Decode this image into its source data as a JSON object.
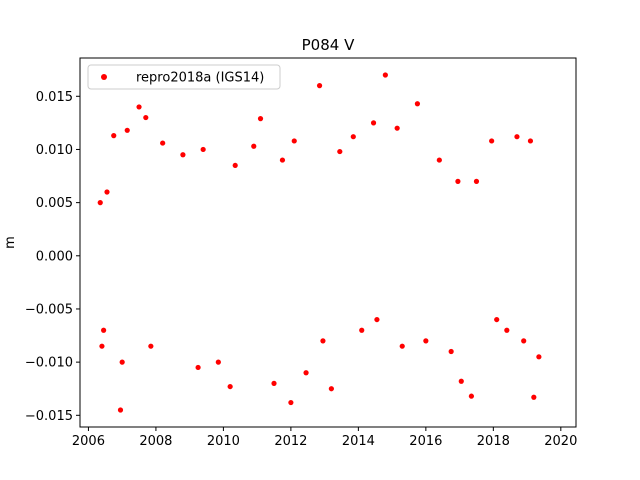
{
  "chart_data": {
    "type": "scatter",
    "title": "P084 V",
    "xlabel": "",
    "ylabel": "m",
    "xlim": [
      2005.75,
      2020.45
    ],
    "ylim": [
      -0.0161,
      0.0186
    ],
    "x_ticks": [
      2006,
      2008,
      2010,
      2012,
      2014,
      2016,
      2018,
      2020
    ],
    "x_tick_labels": [
      "2006",
      "2008",
      "2010",
      "2012",
      "2014",
      "2016",
      "2018",
      "2020"
    ],
    "y_ticks": [
      -0.015,
      -0.01,
      -0.005,
      0.0,
      0.005,
      0.01,
      0.015
    ],
    "y_tick_labels": [
      "−0.015",
      "−0.010",
      "−0.005",
      "0.000",
      "0.005",
      "0.010",
      "0.015"
    ],
    "legend_position": "upper-left",
    "grid": false,
    "series": [
      {
        "name": "repro2018a (IGS14)",
        "color": "#ff0000",
        "marker": "circle",
        "points": [
          [
            2006.35,
            0.005
          ],
          [
            2006.4,
            -0.0085
          ],
          [
            2006.45,
            -0.007
          ],
          [
            2006.55,
            0.006
          ],
          [
            2006.75,
            0.0113
          ],
          [
            2006.95,
            -0.0145
          ],
          [
            2007.0,
            -0.01
          ],
          [
            2007.15,
            0.0118
          ],
          [
            2007.5,
            0.014
          ],
          [
            2007.7,
            0.013
          ],
          [
            2007.85,
            -0.0085
          ],
          [
            2008.2,
            0.0106
          ],
          [
            2008.8,
            0.0095
          ],
          [
            2009.25,
            -0.0105
          ],
          [
            2009.4,
            0.01
          ],
          [
            2009.85,
            -0.01
          ],
          [
            2010.2,
            -0.0123
          ],
          [
            2010.35,
            0.0085
          ],
          [
            2010.9,
            0.0103
          ],
          [
            2011.1,
            0.0129
          ],
          [
            2011.5,
            -0.012
          ],
          [
            2011.75,
            0.009
          ],
          [
            2012.0,
            -0.0138
          ],
          [
            2012.1,
            0.0108
          ],
          [
            2012.45,
            -0.011
          ],
          [
            2012.85,
            0.016
          ],
          [
            2012.95,
            -0.008
          ],
          [
            2013.2,
            -0.0125
          ],
          [
            2013.45,
            0.0098
          ],
          [
            2013.85,
            0.0112
          ],
          [
            2014.1,
            -0.007
          ],
          [
            2014.45,
            0.0125
          ],
          [
            2014.55,
            -0.006
          ],
          [
            2014.8,
            0.017
          ],
          [
            2015.15,
            0.012
          ],
          [
            2015.3,
            -0.0085
          ],
          [
            2015.75,
            0.0143
          ],
          [
            2016.0,
            -0.008
          ],
          [
            2016.4,
            0.009
          ],
          [
            2016.75,
            -0.009
          ],
          [
            2016.95,
            0.007
          ],
          [
            2017.05,
            -0.0118
          ],
          [
            2017.35,
            -0.0132
          ],
          [
            2017.5,
            0.007
          ],
          [
            2017.95,
            0.0108
          ],
          [
            2018.1,
            -0.006
          ],
          [
            2018.4,
            -0.007
          ],
          [
            2018.7,
            0.0112
          ],
          [
            2018.9,
            -0.008
          ],
          [
            2019.1,
            0.0108
          ],
          [
            2019.2,
            -0.0133
          ],
          [
            2019.35,
            -0.0095
          ]
        ]
      }
    ]
  }
}
